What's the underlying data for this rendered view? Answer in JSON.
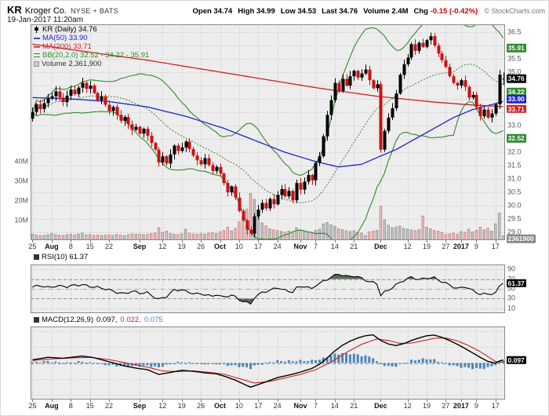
{
  "header": {
    "symbol": "KR",
    "company": "Kroger Co.",
    "exchange": "NYSE + BATS",
    "datetime": "19-Jan-2017 11:20am",
    "copyright": "© StockCharts.com",
    "quote": {
      "open_label": "Open",
      "open": "34.74",
      "high_label": "High",
      "high": "34.99",
      "low_label": "Low",
      "low": "34.53",
      "last_label": "Last",
      "last": "34.76",
      "volume_label": "Volume",
      "volume": "2.4M",
      "chg_label": "Chg",
      "chg": "-0.15 (-0.42%)"
    }
  },
  "legend": {
    "price": "KR (Daily) 34.76",
    "ma50": "MA(50) 33.90",
    "ma200": "MA(200) 33.71",
    "bb": "BB(20,2.0) 32.52 - 34.22 - 35.91",
    "volume": "Volume 2,361,900",
    "rsi": "RSI(10) 61.37",
    "macd_name": "MACD(12,26,9)",
    "macd_v1": "0.097,",
    "macd_v2": "0.022,",
    "macd_v3": "0.075"
  },
  "axes": {
    "price_ticks": [
      "36.5",
      "35.5",
      "35.0",
      "33.0",
      "32.0",
      "31.5",
      "31.0",
      "30.5",
      "30.0",
      "29.5",
      "29.0"
    ],
    "price_tick_values": [
      36.5,
      35.5,
      35.0,
      33.0,
      32.0,
      31.5,
      31.0,
      30.5,
      30.0,
      29.5,
      29.0
    ],
    "volume_ticks": [
      "40M",
      "30M",
      "20M",
      "10M"
    ],
    "volume_tick_values": [
      40,
      30,
      20,
      10
    ],
    "rsi_ticks": [
      "90",
      "70",
      "50",
      "30",
      "10"
    ],
    "rsi_tick_values": [
      90,
      70,
      50,
      30,
      10
    ],
    "x_ticks": [
      {
        "i": 0,
        "label": "25"
      },
      {
        "i": 5,
        "label": "Aug",
        "bold": true
      },
      {
        "i": 10,
        "label": "8"
      },
      {
        "i": 15,
        "label": "15"
      },
      {
        "i": 20,
        "label": "22"
      },
      {
        "i": 28,
        "label": "Sep",
        "bold": true
      },
      {
        "i": 34,
        "label": "12"
      },
      {
        "i": 39,
        "label": "19"
      },
      {
        "i": 44,
        "label": "26"
      },
      {
        "i": 49,
        "label": "Oct",
        "bold": true
      },
      {
        "i": 54,
        "label": "10"
      },
      {
        "i": 59,
        "label": "17"
      },
      {
        "i": 64,
        "label": "24"
      },
      {
        "i": 70,
        "label": "Nov",
        "bold": true
      },
      {
        "i": 74,
        "label": "7"
      },
      {
        "i": 79,
        "label": "14"
      },
      {
        "i": 84,
        "label": "21"
      },
      {
        "i": 91,
        "label": "Dec",
        "bold": true
      },
      {
        "i": 98,
        "label": "12"
      },
      {
        "i": 103,
        "label": "19"
      },
      {
        "i": 108,
        "label": "27"
      },
      {
        "i": 112,
        "label": "2017",
        "bold": true
      },
      {
        "i": 116,
        "label": "9"
      },
      {
        "i": 121,
        "label": "17"
      }
    ],
    "price_boxes": [
      {
        "value": 35.91,
        "label": "35.91",
        "color": "#2e8b2e",
        "dy": 0
      },
      {
        "value": 34.76,
        "label": "34.76",
        "color": "#000000",
        "dy": 0
      },
      {
        "value": 34.22,
        "label": "34.22",
        "color": "#2e8b2e",
        "dy": -2
      },
      {
        "value": 33.9,
        "label": "33.90",
        "color": "#2222cc",
        "dy": -3
      },
      {
        "value": 33.71,
        "label": "33.71",
        "color": "#cc2222",
        "dy": 3
      },
      {
        "value": 32.52,
        "label": "32.52",
        "color": "#2e8b2e",
        "dy": 0
      }
    ],
    "rsi_box": {
      "value": 61.37,
      "label": "61.37",
      "color": "#000000"
    },
    "macd_box": {
      "value": 0.097,
      "label": "0.097",
      "color": "#000000"
    },
    "volume_box": {
      "value": 2.4,
      "label": "2361900",
      "color": "#888888"
    }
  },
  "chart_data": {
    "type": "candlestick",
    "title": "KR Kroger Co. (Daily) with volume, MA(50), MA(200), BB(20,2.0), RSI(10), MACD(12,26,9)",
    "x_axis": "Daily bars, 25-Jul-2016 through 19-Jan-2017",
    "price_range": [
      28.7,
      36.8
    ],
    "last_bar": {
      "open": 34.74,
      "high": 34.99,
      "low": 34.53,
      "close": 34.76,
      "volume_millions": 2.4
    },
    "closes": [
      33.51,
      33.8,
      33.62,
      33.84,
      34.02,
      34.1,
      34.28,
      34.05,
      33.88,
      34.12,
      34.35,
      34.18,
      34.42,
      34.6,
      34.38,
      34.5,
      34.22,
      33.95,
      34.1,
      33.78,
      33.55,
      33.7,
      33.4,
      33.18,
      33.32,
      33.05,
      32.84,
      32.95,
      32.7,
      32.88,
      32.62,
      32.35,
      32.1,
      31.62,
      31.85,
      31.58,
      31.92,
      32.25,
      32.05,
      32.18,
      32.4,
      32.12,
      31.88,
      31.7,
      31.55,
      31.78,
      31.52,
      31.3,
      31.45,
      31.2,
      30.85,
      30.5,
      30.72,
      30.3,
      29.8,
      29.45,
      29.1,
      28.95,
      29.6,
      29.85,
      30.1,
      29.9,
      30.25,
      30.05,
      30.4,
      30.62,
      30.35,
      30.55,
      30.2,
      30.85,
      30.6,
      30.9,
      31.15,
      30.95,
      31.6,
      31.85,
      32.6,
      33.4,
      33.95,
      34.6,
      34.3,
      34.75,
      34.5,
      34.85,
      35.05,
      34.8,
      34.95,
      35.1,
      34.7,
      34.4,
      34.55,
      32.1,
      32.8,
      33.3,
      33.65,
      34.2,
      34.9,
      35.3,
      35.55,
      36.05,
      35.8,
      36.1,
      35.95,
      36.2,
      36.35,
      36.0,
      35.7,
      35.45,
      35.2,
      34.85,
      34.6,
      34.5,
      34.7,
      34.45,
      34.05,
      34.15,
      33.7,
      33.35,
      33.6,
      33.3,
      33.45,
      33.8,
      34.91,
      34.76
    ],
    "volumes_millions": [
      3.2,
      2.8,
      2.5,
      2.6,
      3.0,
      3.5,
      3.0,
      2.8,
      2.6,
      2.9,
      3.1,
      2.7,
      3.3,
      3.8,
      2.9,
      3.0,
      2.6,
      2.8,
      2.5,
      2.7,
      2.9,
      2.6,
      3.1,
      2.8,
      2.5,
      3.0,
      3.4,
      3.2,
      3.3,
      2.9,
      3.1,
      3.5,
      3.8,
      6.5,
      4.2,
      4.8,
      3.6,
      3.2,
      3.0,
      3.4,
      5.8,
      3.7,
      3.3,
      3.1,
      3.5,
      3.2,
      3.8,
      4.1,
      3.6,
      4.5,
      5.2,
      6.8,
      4.9,
      6.2,
      9.5,
      12.0,
      16.0,
      24.0,
      21.0,
      14.0,
      9.0,
      7.5,
      6.0,
      5.5,
      5.0,
      4.6,
      4.2,
      4.8,
      4.4,
      6.5,
      5.5,
      4.8,
      4.2,
      4.0,
      5.2,
      5.8,
      8.5,
      9.2,
      8.0,
      7.2,
      6.0,
      5.5,
      5.0,
      4.6,
      4.9,
      4.2,
      3.8,
      2.5,
      4.4,
      4.8,
      5.2,
      17.5,
      10.5,
      7.8,
      6.5,
      6.9,
      7.4,
      6.2,
      5.8,
      5.4,
      5.0,
      5.6,
      12.5,
      6.8,
      5.9,
      5.2,
      4.8,
      4.2,
      3.0,
      3.4,
      3.8,
      3.2,
      4.6,
      4.2,
      5.8,
      4.4,
      5.2,
      6.8,
      5.4,
      6.2,
      4.8,
      8.5,
      14.0,
      2.4
    ],
    "overlays": {
      "ma50_points": [
        [
          0,
          34.05
        ],
        [
          10,
          34.0
        ],
        [
          20,
          33.9
        ],
        [
          30,
          33.7
        ],
        [
          40,
          33.35
        ],
        [
          50,
          32.9
        ],
        [
          58,
          32.45
        ],
        [
          66,
          32.0
        ],
        [
          74,
          31.65
        ],
        [
          80,
          31.45
        ],
        [
          86,
          31.55
        ],
        [
          90,
          31.8
        ],
        [
          95,
          32.1
        ],
        [
          100,
          32.5
        ],
        [
          105,
          32.9
        ],
        [
          110,
          33.3
        ],
        [
          115,
          33.6
        ],
        [
          119,
          33.75
        ],
        [
          123,
          33.9
        ]
      ],
      "ma200_points": [
        [
          0,
          36.05
        ],
        [
          15,
          35.75
        ],
        [
          30,
          35.45
        ],
        [
          45,
          35.1
        ],
        [
          60,
          34.75
        ],
        [
          75,
          34.4
        ],
        [
          90,
          34.1
        ],
        [
          105,
          33.88
        ],
        [
          115,
          33.77
        ],
        [
          123,
          33.71
        ]
      ],
      "bollinger": {
        "period": 20,
        "stdev": 2.0,
        "last_lower": 32.52,
        "last_mid": 34.22,
        "last_upper": 35.91
      },
      "ma50_last": 33.9,
      "ma200_last": 33.71
    },
    "rsi_points": [
      [
        0,
        52
      ],
      [
        2,
        56
      ],
      [
        4,
        54
      ],
      [
        6,
        57
      ],
      [
        9,
        53
      ],
      [
        13,
        60
      ],
      [
        15,
        56
      ],
      [
        18,
        50
      ],
      [
        21,
        46
      ],
      [
        24,
        41
      ],
      [
        26,
        44
      ],
      [
        28,
        40
      ],
      [
        30,
        43
      ],
      [
        32,
        34
      ],
      [
        33,
        29
      ],
      [
        35,
        33
      ],
      [
        37,
        46
      ],
      [
        39,
        49
      ],
      [
        41,
        44
      ],
      [
        43,
        39
      ],
      [
        45,
        37
      ],
      [
        47,
        34
      ],
      [
        48,
        40
      ],
      [
        50,
        34
      ],
      [
        52,
        37
      ],
      [
        54,
        26
      ],
      [
        56,
        22
      ],
      [
        57,
        20
      ],
      [
        58,
        34
      ],
      [
        60,
        43
      ],
      [
        62,
        45
      ],
      [
        64,
        52
      ],
      [
        66,
        48
      ],
      [
        68,
        45
      ],
      [
        69,
        52
      ],
      [
        71,
        54
      ],
      [
        73,
        49
      ],
      [
        74,
        58
      ],
      [
        76,
        67
      ],
      [
        78,
        74
      ],
      [
        80,
        79
      ],
      [
        82,
        75
      ],
      [
        84,
        78
      ],
      [
        86,
        73
      ],
      [
        88,
        63
      ],
      [
        90,
        60
      ],
      [
        91,
        36
      ],
      [
        92,
        44
      ],
      [
        94,
        54
      ],
      [
        96,
        63
      ],
      [
        98,
        69
      ],
      [
        99,
        73
      ],
      [
        101,
        70
      ],
      [
        103,
        74
      ],
      [
        105,
        72
      ],
      [
        107,
        63
      ],
      [
        109,
        58
      ],
      [
        111,
        52
      ],
      [
        113,
        55
      ],
      [
        115,
        45
      ],
      [
        117,
        38
      ],
      [
        119,
        41
      ],
      [
        121,
        42
      ],
      [
        122,
        56
      ],
      [
        123,
        61.37
      ]
    ],
    "rsi_last": 61.37,
    "rsi_thresholds": [
      70,
      50,
      30
    ],
    "macd_points": [
      [
        0,
        0.1
      ],
      [
        4,
        0.18
      ],
      [
        8,
        0.15
      ],
      [
        13,
        0.22
      ],
      [
        16,
        0.17
      ],
      [
        20,
        0.04
      ],
      [
        24,
        -0.09
      ],
      [
        27,
        -0.16
      ],
      [
        30,
        -0.21
      ],
      [
        33,
        -0.36
      ],
      [
        36,
        -0.3
      ],
      [
        39,
        -0.23
      ],
      [
        42,
        -0.26
      ],
      [
        45,
        -0.31
      ],
      [
        48,
        -0.34
      ],
      [
        50,
        -0.41
      ],
      [
        53,
        -0.54
      ],
      [
        56,
        -0.71
      ],
      [
        57,
        -0.76
      ],
      [
        59,
        -0.68
      ],
      [
        62,
        -0.55
      ],
      [
        64,
        -0.46
      ],
      [
        67,
        -0.38
      ],
      [
        69,
        -0.32
      ],
      [
        71,
        -0.25
      ],
      [
        73,
        -0.17
      ],
      [
        75,
        -0.04
      ],
      [
        77,
        0.16
      ],
      [
        79,
        0.38
      ],
      [
        81,
        0.56
      ],
      [
        83,
        0.69
      ],
      [
        85,
        0.79
      ],
      [
        87,
        0.86
      ],
      [
        89,
        0.89
      ],
      [
        91,
        0.71
      ],
      [
        93,
        0.6
      ],
      [
        95,
        0.55
      ],
      [
        97,
        0.61
      ],
      [
        99,
        0.71
      ],
      [
        101,
        0.79
      ],
      [
        103,
        0.86
      ],
      [
        105,
        0.88
      ],
      [
        107,
        0.81
      ],
      [
        109,
        0.71
      ],
      [
        111,
        0.59
      ],
      [
        113,
        0.46
      ],
      [
        115,
        0.32
      ],
      [
        117,
        0.18
      ],
      [
        119,
        0.05
      ],
      [
        121,
        0.0
      ],
      [
        122,
        0.06
      ],
      [
        123,
        0.097
      ]
    ],
    "signal_points": [
      [
        0,
        0.08
      ],
      [
        5,
        0.13
      ],
      [
        10,
        0.16
      ],
      [
        15,
        0.18
      ],
      [
        20,
        0.11
      ],
      [
        25,
        -0.01
      ],
      [
        30,
        -0.13
      ],
      [
        34,
        -0.25
      ],
      [
        38,
        -0.27
      ],
      [
        42,
        -0.25
      ],
      [
        46,
        -0.29
      ],
      [
        50,
        -0.35
      ],
      [
        54,
        -0.49
      ],
      [
        58,
        -0.63
      ],
      [
        62,
        -0.58
      ],
      [
        66,
        -0.47
      ],
      [
        70,
        -0.36
      ],
      [
        74,
        -0.21
      ],
      [
        78,
        0.03
      ],
      [
        82,
        0.33
      ],
      [
        86,
        0.59
      ],
      [
        90,
        0.76
      ],
      [
        93,
        0.71
      ],
      [
        96,
        0.62
      ],
      [
        99,
        0.63
      ],
      [
        102,
        0.7
      ],
      [
        105,
        0.78
      ],
      [
        108,
        0.79
      ],
      [
        111,
        0.7
      ],
      [
        114,
        0.55
      ],
      [
        117,
        0.36
      ],
      [
        119,
        0.2
      ],
      [
        121,
        0.05
      ],
      [
        122,
        0.035
      ],
      [
        123,
        0.022
      ]
    ],
    "macd_last": 0.097,
    "signal_last": 0.022,
    "hist_last": 0.075
  },
  "style": {
    "up": "#000000",
    "down": "#cc1111",
    "ma50": "#2222cc",
    "ma200": "#cc2222",
    "sig": "#cc2222",
    "bb": "#2e8b2e",
    "vol_up_fill": "#c9c9c9",
    "vol_up_line": "#9a9a9a",
    "vol_down_fill": "#efc3c3",
    "vol_down_line": "#cc8a8a",
    "hist": "#4a86b8",
    "panel_bg": "#ededed",
    "grid": "#c2c2c2",
    "border": "#888888",
    "shade": "#5a6a55",
    "volume_text": "#333333"
  }
}
